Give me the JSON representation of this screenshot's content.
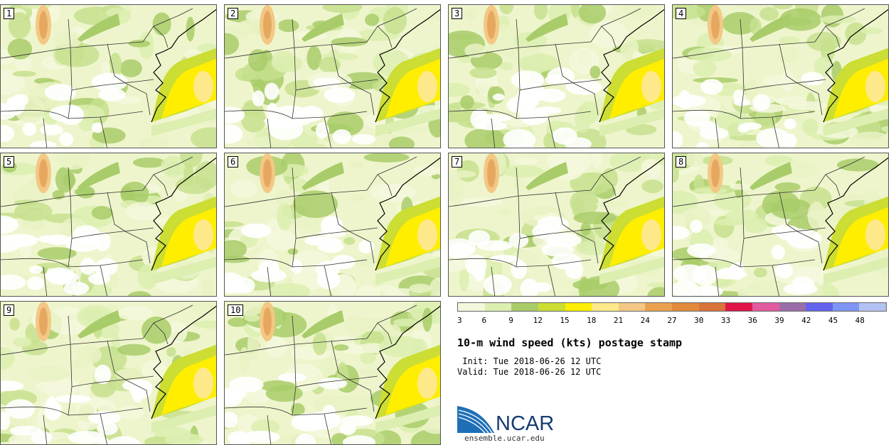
{
  "panels": [
    "1",
    "2",
    "3",
    "4",
    "5",
    "6",
    "7",
    "8",
    "9",
    "10"
  ],
  "colorbar": {
    "colors": [
      "#f4f8dc",
      "#dceeb0",
      "#a9cc6a",
      "#ccdd33",
      "#ffee00",
      "#fde98a",
      "#f3c885",
      "#eaa150",
      "#e28a3c",
      "#d9733a",
      "#e0154a",
      "#e25aa0",
      "#9a6ea8",
      "#6363ee",
      "#7f95f2",
      "#b2c2f2"
    ],
    "labels": [
      "3",
      "6",
      "9",
      "12",
      "15",
      "18",
      "21",
      "24",
      "27",
      "30",
      "33",
      "36",
      "39",
      "42",
      "45",
      "48"
    ]
  },
  "title": "10-m wind speed (kts) postage stamp",
  "init": " Init: Tue 2018-06-26 12 UTC",
  "valid": "Valid: Tue 2018-06-26 12 UTC",
  "logo": {
    "name": "NCAR",
    "url": "ensemble.ucar.edu",
    "colors": {
      "arc": "#1e6fb5",
      "text": "#163b71"
    }
  }
}
